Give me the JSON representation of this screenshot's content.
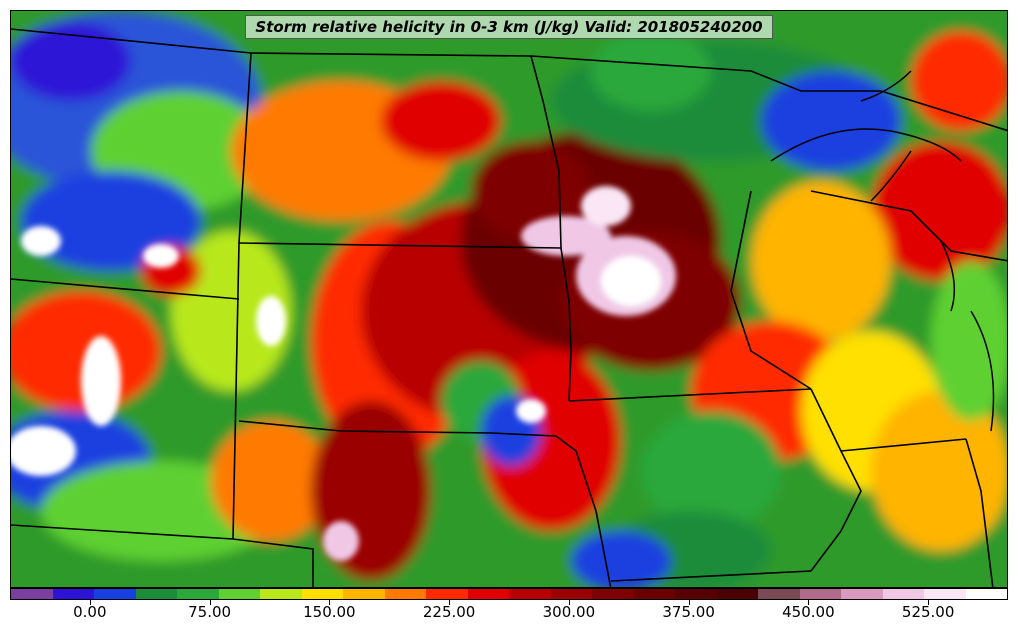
{
  "title": "Storm relative helicity in 0-3 km (J/kg) Valid: 201805240200",
  "colorbar": {
    "colors": [
      "#7b3fa0",
      "#2d13d6",
      "#1a3fe0",
      "#1c8c3a",
      "#2ca83a",
      "#5fd030",
      "#b8e81c",
      "#ffe000",
      "#ffb400",
      "#ff7a00",
      "#ff2a00",
      "#e00000",
      "#b80000",
      "#9a0000",
      "#7e0000",
      "#6a0000",
      "#560000",
      "#4a0000",
      "#7a4a55",
      "#b06a8a",
      "#d89ac0",
      "#f0c8e6",
      "#fbe6f6",
      "#ffffff"
    ],
    "tick_values": [
      0,
      75,
      150,
      225,
      300,
      375,
      450,
      525
    ],
    "tick_labels": [
      "0.00",
      "75.00",
      "150.00",
      "225.00",
      "300.00",
      "375.00",
      "450.00",
      "525.00"
    ],
    "min": -50,
    "max": 575
  }
}
